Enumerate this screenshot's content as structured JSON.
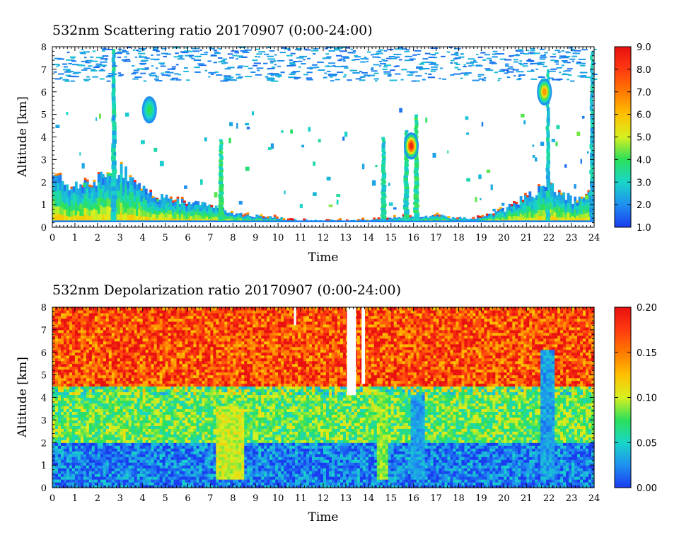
{
  "chart_data": [
    {
      "type": "heatmap",
      "title": "532nm Scattering ratio  20170907 (0:00-24:00)",
      "xlabel": "Time",
      "ylabel": "Altitude [km]",
      "xlim": [
        0,
        24
      ],
      "ylim": [
        0,
        8
      ],
      "xticks": [
        "0",
        "1",
        "2",
        "3",
        "4",
        "5",
        "6",
        "7",
        "8",
        "9",
        "10",
        "11",
        "12",
        "13",
        "14",
        "15",
        "16",
        "17",
        "18",
        "19",
        "20",
        "21",
        "22",
        "23",
        "24"
      ],
      "yticks": [
        "0",
        "1",
        "2",
        "3",
        "4",
        "5",
        "6",
        "7",
        "8"
      ],
      "colorbar": {
        "range": [
          1.0,
          9.0
        ],
        "ticks": [
          "1.0",
          "2.0",
          "3.0",
          "4.0",
          "5.0",
          "6.0",
          "7.0",
          "8.0",
          "9.0"
        ],
        "colors": [
          "#1a3cf0",
          "#1e90f0",
          "#19d6c8",
          "#2be05a",
          "#d8f020",
          "#ffc000",
          "#ff7a00",
          "#ff3a10",
          "#e81010"
        ]
      },
      "features": [
        {
          "kind": "boundary_layer",
          "t": [
            0,
            1,
            2,
            3,
            4,
            5,
            6,
            7,
            8,
            9,
            10,
            11,
            12,
            13,
            14,
            15,
            16,
            17,
            18,
            19,
            20,
            21,
            22,
            23,
            24
          ],
          "top_km": [
            2.2,
            1.8,
            2.1,
            2.6,
            1.6,
            1.3,
            1.1,
            1.0,
            0.6,
            0.5,
            0.4,
            0.3,
            0.3,
            0.3,
            0.3,
            0.4,
            0.5,
            0.5,
            0.4,
            0.4,
            0.8,
            1.4,
            1.8,
            1.2,
            1.5
          ],
          "peak": 7.5
        },
        {
          "kind": "column",
          "t_start": 2.6,
          "t_end": 2.85,
          "bottom_km": 0.3,
          "top_km": 7.9,
          "value": 2.2
        },
        {
          "kind": "column",
          "t_start": 7.35,
          "t_end": 7.6,
          "bottom_km": 0.3,
          "top_km": 3.9,
          "value": 2.8
        },
        {
          "kind": "column",
          "t_start": 14.55,
          "t_end": 14.8,
          "bottom_km": 0.3,
          "top_km": 4.0,
          "value": 2.4
        },
        {
          "kind": "column",
          "t_start": 15.55,
          "t_end": 15.8,
          "bottom_km": 0.3,
          "top_km": 4.3,
          "value": 2.6
        },
        {
          "kind": "column",
          "t_start": 16.0,
          "t_end": 16.25,
          "bottom_km": 0.3,
          "top_km": 5.0,
          "value": 2.8
        },
        {
          "kind": "column",
          "t_start": 21.85,
          "t_end": 22.05,
          "bottom_km": 0.3,
          "top_km": 7.0,
          "value": 2.2
        },
        {
          "kind": "column",
          "t_start": 23.8,
          "t_end": 24.0,
          "bottom_km": 0.3,
          "top_km": 7.8,
          "value": 2.0
        },
        {
          "kind": "blob",
          "t": 15.9,
          "alt_km": 3.6,
          "value": 8.5
        },
        {
          "kind": "blob",
          "t": 21.8,
          "alt_km": 6.0,
          "value": 6.5
        },
        {
          "kind": "blob",
          "t": 4.3,
          "alt_km": 5.2,
          "value": 4.0
        },
        {
          "kind": "noise_band",
          "bottom_km": 6.5,
          "top_km": 8.0,
          "value": 1.5
        }
      ]
    },
    {
      "type": "heatmap",
      "title": "532nm Depolarization ratio  20170907 (0:00-24:00)",
      "xlabel": "Time",
      "ylabel": "Altitude [km]",
      "xlim": [
        0,
        24
      ],
      "ylim": [
        0,
        8
      ],
      "xticks": [
        "0",
        "1",
        "2",
        "3",
        "4",
        "5",
        "6",
        "7",
        "8",
        "9",
        "10",
        "11",
        "12",
        "13",
        "14",
        "15",
        "16",
        "17",
        "18",
        "19",
        "20",
        "21",
        "22",
        "23",
        "24"
      ],
      "yticks": [
        "0",
        "1",
        "2",
        "3",
        "4",
        "5",
        "6",
        "7",
        "8"
      ],
      "colorbar": {
        "range": [
          0.0,
          0.2
        ],
        "ticks": [
          "0.00",
          "0.05",
          "0.10",
          "0.15",
          "0.20"
        ],
        "colors": [
          "#1a3cf0",
          "#1e90f0",
          "#19d6c8",
          "#2be05a",
          "#d8f020",
          "#ffc000",
          "#ff7a00",
          "#ff3a10",
          "#e81010"
        ]
      },
      "features": [
        {
          "kind": "low_layer",
          "bottom_km": 0.0,
          "top_km": 2.0,
          "value": 0.02
        },
        {
          "kind": "mid_layer",
          "bottom_km": 2.0,
          "top_km": 4.5,
          "value": 0.08
        },
        {
          "kind": "upper_layer",
          "bottom_km": 4.5,
          "top_km": 8.0,
          "value": 0.17
        },
        {
          "kind": "column",
          "t_start": 7.2,
          "t_end": 8.4,
          "bottom_km": 0.3,
          "top_km": 3.5,
          "value": 0.1
        },
        {
          "kind": "column",
          "t_start": 14.3,
          "t_end": 14.8,
          "bottom_km": 0.3,
          "top_km": 4.2,
          "value": 0.09
        },
        {
          "kind": "column",
          "t_start": 15.8,
          "t_end": 16.4,
          "bottom_km": 0.3,
          "top_km": 4.0,
          "value": 0.03
        },
        {
          "kind": "column",
          "t_start": 21.6,
          "t_end": 22.2,
          "bottom_km": 0.3,
          "top_km": 6.0,
          "value": 0.03
        },
        {
          "kind": "gap",
          "t_start": 13.05,
          "t_end": 13.45,
          "bottom_km": 4.1,
          "top_km": 8.0
        },
        {
          "kind": "gap",
          "t_start": 13.7,
          "t_end": 13.85,
          "bottom_km": 4.6,
          "top_km": 8.0
        },
        {
          "kind": "gap",
          "t_start": 10.7,
          "t_end": 10.8,
          "bottom_km": 7.2,
          "top_km": 8.0
        }
      ]
    }
  ]
}
